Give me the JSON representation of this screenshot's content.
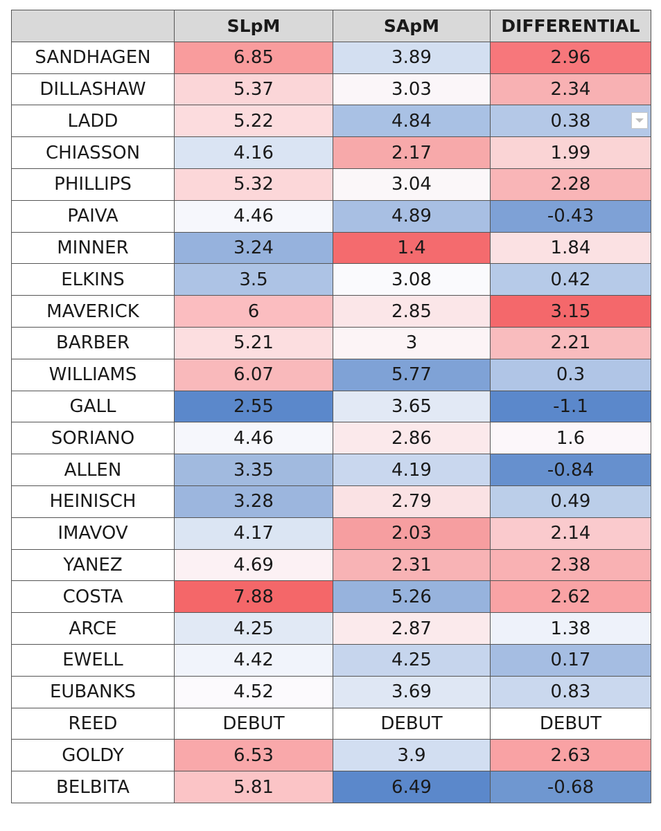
{
  "headers": [
    "",
    "SLpM",
    "SApM",
    "DIFFERENTIAL"
  ],
  "rows": [
    {
      "name": "SANDHAGEN",
      "slpm": "6.85",
      "sapm": "3.89",
      "diff": "2.96",
      "colors": [
        "#f99c9d",
        "#d3dff1",
        "#f7777b"
      ]
    },
    {
      "name": "DILLASHAW",
      "slpm": "5.37",
      "sapm": "3.03",
      "diff": "2.34",
      "colors": [
        "#fbd6d8",
        "#fbf6f9",
        "#f8b1b3"
      ]
    },
    {
      "name": "LADD",
      "slpm": "5.22",
      "sapm": "4.84",
      "diff": "0.38",
      "colors": [
        "#fcdcde",
        "#a9c1e4",
        "#b4c8e7"
      ]
    },
    {
      "name": "CHIASSON",
      "slpm": "4.16",
      "sapm": "2.17",
      "diff": "1.99",
      "colors": [
        "#dae4f3",
        "#f7a9aa",
        "#fad4d5"
      ]
    },
    {
      "name": "PHILLIPS",
      "slpm": "5.32",
      "sapm": "3.04",
      "diff": "2.28",
      "colors": [
        "#fcd7d9",
        "#fbf7f9",
        "#f9b5b7"
      ]
    },
    {
      "name": "PAIVA",
      "slpm": "4.46",
      "sapm": "4.89",
      "diff": "-0.43",
      "colors": [
        "#f6f7fc",
        "#a8bfe3",
        "#7ea1d6"
      ]
    },
    {
      "name": "MINNER",
      "slpm": "3.24",
      "sapm": "1.4",
      "diff": "1.84",
      "colors": [
        "#96b2dd",
        "#f46b6e",
        "#fbe1e3"
      ]
    },
    {
      "name": "ELKINS",
      "slpm": "3.5",
      "sapm": "3.08",
      "diff": "0.42",
      "colors": [
        "#adc3e5",
        "#fafafd",
        "#b6cae8"
      ]
    },
    {
      "name": "MAVERICK",
      "slpm": "6",
      "sapm": "2.85",
      "diff": "3.15",
      "colors": [
        "#fbbdc0",
        "#fbe6e8",
        "#f4686b"
      ]
    },
    {
      "name": "BARBER",
      "slpm": "5.21",
      "sapm": "3",
      "diff": "2.21",
      "colors": [
        "#fcdee0",
        "#fcf4f6",
        "#f9bcbe"
      ]
    },
    {
      "name": "WILLIAMS",
      "slpm": "6.07",
      "sapm": "5.77",
      "diff": "0.3",
      "colors": [
        "#f9b9bb",
        "#7fa2d6",
        "#b0c5e6"
      ]
    },
    {
      "name": "GALL",
      "slpm": "2.55",
      "sapm": "3.65",
      "diff": "-1.1",
      "colors": [
        "#5b88cb",
        "#e2e9f5",
        "#5b88cb"
      ]
    },
    {
      "name": "SORIANO",
      "slpm": "4.46",
      "sapm": "2.86",
      "diff": "1.6",
      "colors": [
        "#f6f7fc",
        "#fbe9eb",
        "#fcf7fa"
      ]
    },
    {
      "name": "ALLEN",
      "slpm": "3.35",
      "sapm": "4.19",
      "diff": "-0.84",
      "colors": [
        "#a1badf",
        "#c9d7ee",
        "#6690ce"
      ]
    },
    {
      "name": "HEINISCH",
      "slpm": "3.28",
      "sapm": "2.79",
      "diff": "0.49",
      "colors": [
        "#9cb6de",
        "#fae2e4",
        "#bbcee9"
      ]
    },
    {
      "name": "IMAVOV",
      "slpm": "4.17",
      "sapm": "2.03",
      "diff": "2.14",
      "colors": [
        "#dbe5f3",
        "#f69ea0",
        "#facacd"
      ]
    },
    {
      "name": "YANEZ",
      "slpm": "4.69",
      "sapm": "2.31",
      "diff": "2.38",
      "colors": [
        "#fcf1f4",
        "#f8b3b5",
        "#f9b1b3"
      ]
    },
    {
      "name": "COSTA",
      "slpm": "7.88",
      "sapm": "5.26",
      "diff": "2.62",
      "colors": [
        "#f46769",
        "#97b3dd",
        "#f9a3a5"
      ]
    },
    {
      "name": "ARCE",
      "slpm": "4.25",
      "sapm": "2.87",
      "diff": "1.38",
      "colors": [
        "#e1e9f5",
        "#fbeaec",
        "#eef2fa"
      ]
    },
    {
      "name": "EWELL",
      "slpm": "4.42",
      "sapm": "4.25",
      "diff": "0.17",
      "colors": [
        "#f1f4fb",
        "#c6d5ed",
        "#a5bde2"
      ]
    },
    {
      "name": "EUBANKS",
      "slpm": "4.52",
      "sapm": "3.69",
      "diff": "0.83",
      "colors": [
        "#fcfafd",
        "#dfe7f4",
        "#cad8ee"
      ]
    },
    {
      "name": "REED",
      "slpm": "DEBUT",
      "sapm": "DEBUT",
      "diff": "DEBUT",
      "colors": [
        "#ffffff",
        "#ffffff",
        "#ffffff"
      ]
    },
    {
      "name": "GOLDY",
      "slpm": "6.53",
      "sapm": "3.9",
      "diff": "2.63",
      "colors": [
        "#f9a8aa",
        "#d2def1",
        "#f9a2a4"
      ]
    },
    {
      "name": "BELBITA",
      "slpm": "5.81",
      "sapm": "6.49",
      "diff": "-0.68",
      "colors": [
        "#fbc4c6",
        "#5b88cb",
        "#6f97d0"
      ]
    }
  ],
  "filter_icon": "dropdown-arrow-icon"
}
